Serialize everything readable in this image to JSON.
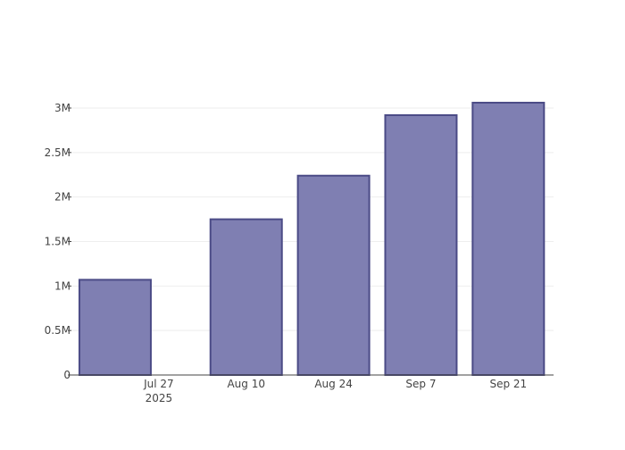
{
  "chart_data": {
    "type": "bar",
    "title": "",
    "xlabel": "",
    "ylabel": "",
    "categories": [
      "2025-07-20",
      "2025-08-10",
      "2025-08-24",
      "2025-09-07",
      "2025-09-21"
    ],
    "values": [
      1070000,
      1750000,
      2240000,
      2920000,
      3060000
    ],
    "ylim": [
      0,
      3200000
    ],
    "yticks": [
      {
        "value": 0,
        "label": "0"
      },
      {
        "value": 500000,
        "label": "0.5M"
      },
      {
        "value": 1000000,
        "label": "1M"
      },
      {
        "value": 1500000,
        "label": "1.5M"
      },
      {
        "value": 2000000,
        "label": "2M"
      },
      {
        "value": 2500000,
        "label": "2.5M"
      },
      {
        "value": 3000000,
        "label": "3M"
      }
    ],
    "xticks": [
      {
        "date": "2025-07-27",
        "label": "Jul 27",
        "sublabel": "2025"
      },
      {
        "date": "2025-08-10",
        "label": "Aug 10",
        "sublabel": ""
      },
      {
        "date": "2025-08-24",
        "label": "Aug 24",
        "sublabel": ""
      },
      {
        "date": "2025-09-07",
        "label": "Sep 7",
        "sublabel": ""
      },
      {
        "date": "2025-09-21",
        "label": "Sep 21",
        "sublabel": ""
      }
    ],
    "grid": true,
    "legend": "none",
    "colors": {
      "bar_fill": "#7f7fb2",
      "bar_stroke": "#4b4b86",
      "grid": "#eeeeee",
      "axis": "#444444",
      "text": "#444444"
    }
  }
}
